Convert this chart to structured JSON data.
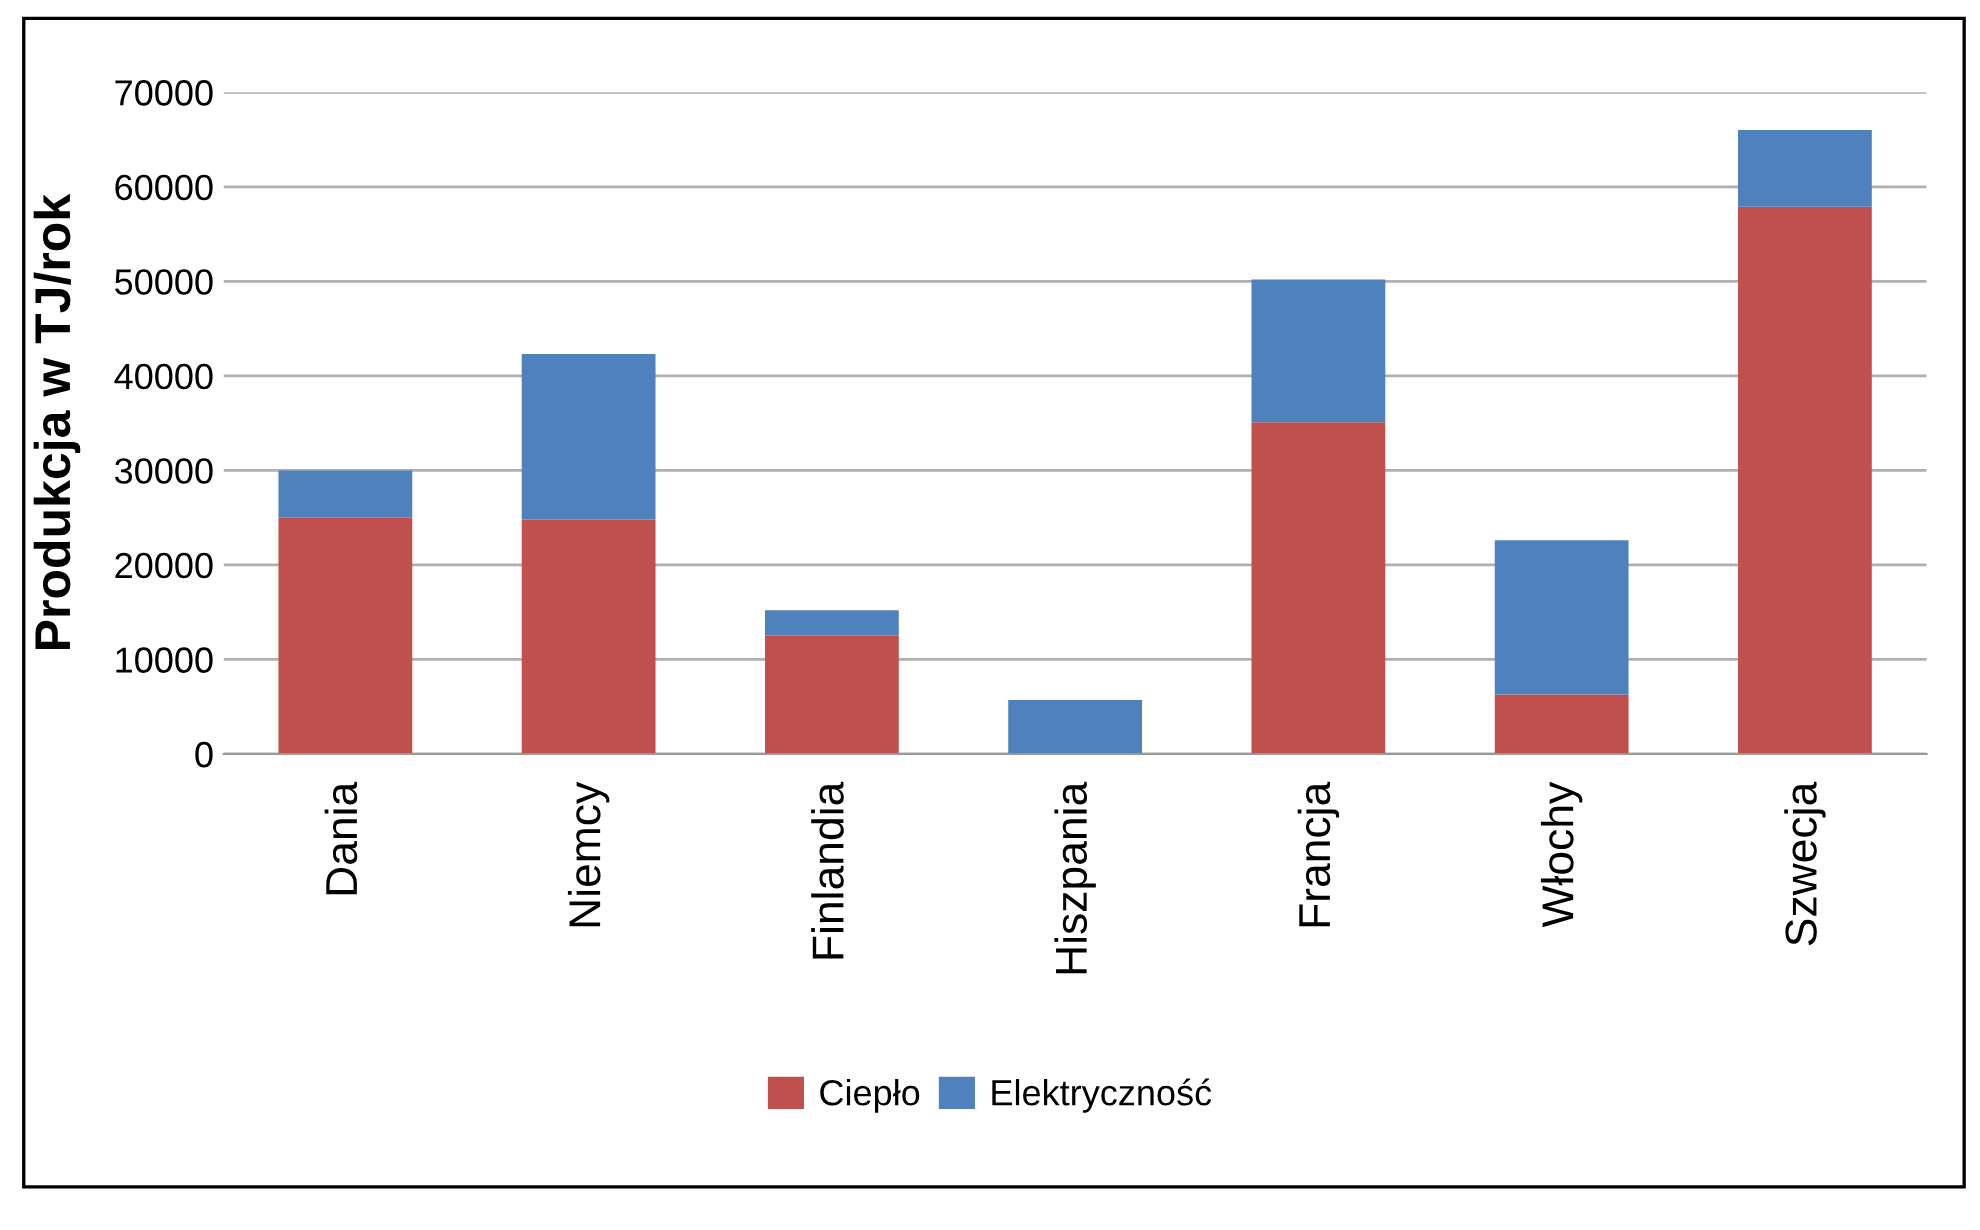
{
  "chart_data": {
    "type": "bar",
    "stacked": true,
    "ylabel": "Produkcja w TJ/rok",
    "categories": [
      "Dania",
      "Niemcy",
      "Finlandia",
      "Hiszpania",
      "Francja",
      "Włochy",
      "Szwecja"
    ],
    "series": [
      {
        "name": "Ciepło",
        "color": "#c0504d",
        "values": [
          25000,
          24800,
          12500,
          0,
          35100,
          6300,
          57900
        ]
      },
      {
        "name": "Elektryczność",
        "color": "#4f81bd",
        "values": [
          5000,
          17500,
          2700,
          5700,
          15100,
          16300,
          8100
        ]
      }
    ],
    "ylim": [
      0,
      70000
    ],
    "yticks": [
      0,
      10000,
      20000,
      30000,
      40000,
      50000,
      60000,
      70000
    ],
    "grid": "y",
    "legend": "bottom"
  }
}
